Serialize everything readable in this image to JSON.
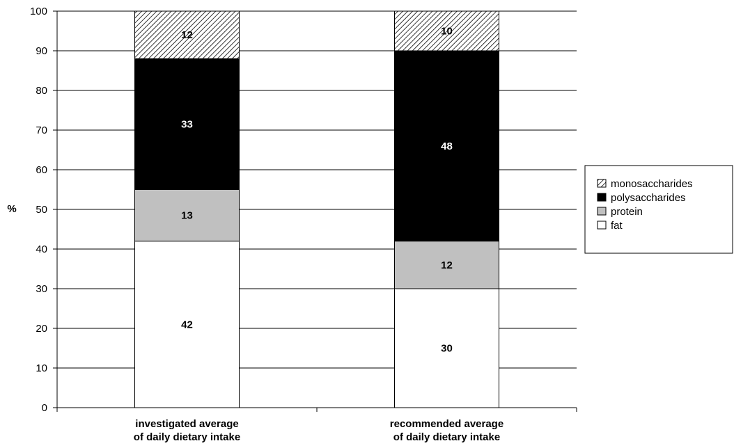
{
  "chart_data": {
    "type": "bar",
    "stacked": true,
    "categories": [
      [
        "investigated average",
        "of daily dietary intake"
      ],
      [
        "recommended average",
        "of daily dietary intake"
      ]
    ],
    "series": [
      {
        "name": "fat",
        "values": [
          42,
          30
        ],
        "fill": "#ffffff",
        "label_color": "#000000"
      },
      {
        "name": "protein",
        "values": [
          13,
          12
        ],
        "fill": "#c0c0c0",
        "label_color": "#000000"
      },
      {
        "name": "polysaccharides",
        "values": [
          33,
          48
        ],
        "fill": "#000000",
        "label_color": "#ffffff"
      },
      {
        "name": "monosaccharides",
        "values": [
          12,
          10
        ],
        "fill": "hatch",
        "label_color": "#000000"
      }
    ],
    "legend_order": [
      "monosaccharides",
      "polysaccharides",
      "protein",
      "fat"
    ],
    "ylabel": "%",
    "xlabel": "",
    "title": "",
    "ylim": [
      0,
      100
    ],
    "yticks": [
      0,
      10,
      20,
      30,
      40,
      50,
      60,
      70,
      80,
      90,
      100
    ],
    "grid": true,
    "legend_position": "right"
  }
}
